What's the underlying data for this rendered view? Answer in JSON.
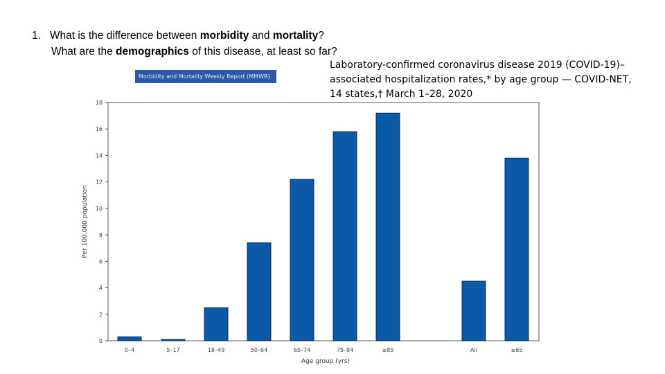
{
  "question": {
    "number": "1.",
    "line1": {
      "before": "What is the difference between ",
      "bold1": "morbidity",
      "middle": " and ",
      "bold2": "mortality",
      "after": "?"
    },
    "line2": {
      "before": "What are the ",
      "bold": "demographics",
      "after": " of this disease, at least so far?"
    }
  },
  "caption": {
    "line1": "Laboratory-confirmed coronavirus disease 2019 (COVID-19)–",
    "line2": "associated hospitalization rates,* by age group — COVID-NET,",
    "line3": "14 states,† March 1–28, 2020"
  },
  "badge": "Morbidity and Mortality Weekly Report (MMWR)",
  "colors": {
    "bar": "#0b5aa8",
    "bar_outline": "#0a2f5c",
    "badge": "#2d5aa8"
  },
  "chart_data": {
    "type": "bar",
    "title": "",
    "xlabel": "Age group (yrs)",
    "ylabel": "Per 100,000 population",
    "ylim": [
      0,
      18
    ],
    "yticks": [
      0,
      2,
      4,
      6,
      8,
      10,
      12,
      14,
      16,
      18
    ],
    "categories": [
      "0–4",
      "5–17",
      "18–49",
      "50–64",
      "65–74",
      "75–84",
      "≥85",
      "All",
      "≥65"
    ],
    "values": [
      0.3,
      0.1,
      2.5,
      7.4,
      12.2,
      15.8,
      17.2,
      4.5,
      13.8
    ]
  }
}
